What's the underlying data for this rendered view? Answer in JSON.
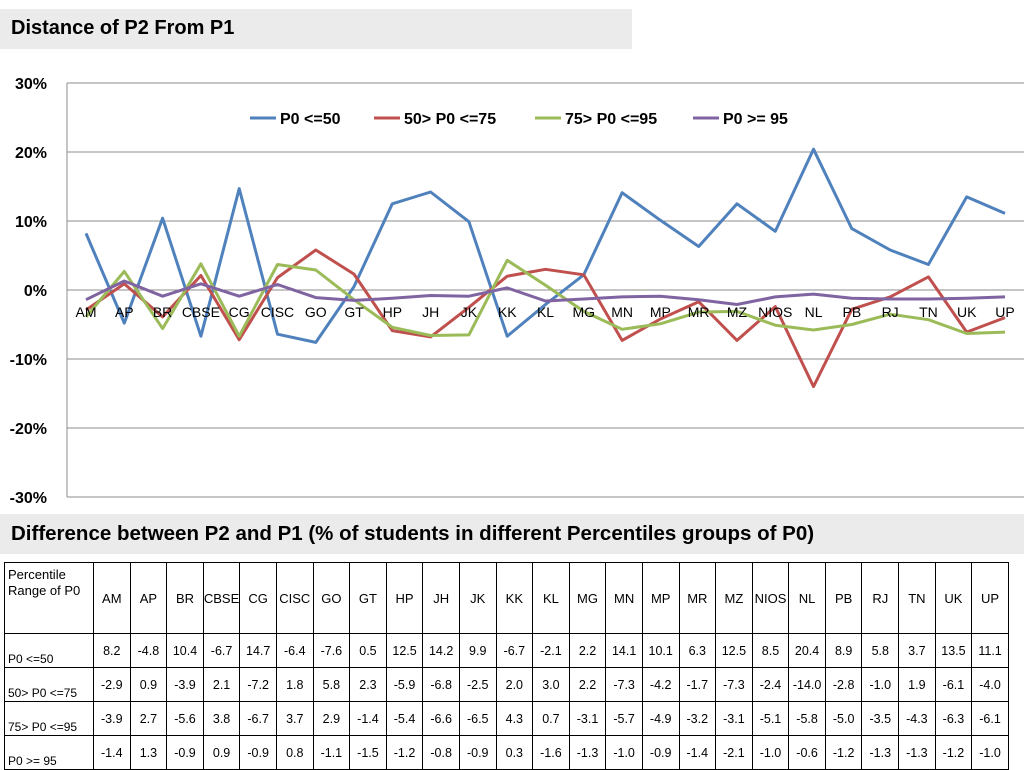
{
  "title": "Distance of P2 From P1",
  "subtitle": "Difference between P2 and P1 (% of students in different Percentiles groups of  P0)",
  "chart_data": {
    "type": "line",
    "categories": [
      "AM",
      "AP",
      "BR",
      "CBSE",
      "CG",
      "CISC",
      "GO",
      "GT",
      "HP",
      "JH",
      "JK",
      "KK",
      "KL",
      "MG",
      "MN",
      "MP",
      "MR",
      "MZ",
      "NIOS",
      "NL",
      "PB",
      "RJ",
      "TN",
      "UK",
      "UP"
    ],
    "ylim": [
      -30,
      30
    ],
    "yticks": [
      "-30%",
      "-20%",
      "-10%",
      "0%",
      "10%",
      "20%",
      "30%"
    ],
    "ytick_values": [
      -30,
      -20,
      -10,
      0,
      10,
      20,
      30
    ],
    "grid": true,
    "legend_position": "top",
    "series": [
      {
        "name": "P0 <=50",
        "color": "#4f81bd",
        "values": [
          8.2,
          -4.8,
          10.4,
          -6.7,
          14.7,
          -6.4,
          -7.6,
          0.5,
          12.5,
          14.2,
          9.9,
          -6.7,
          -2.1,
          2.2,
          14.1,
          10.1,
          6.3,
          12.5,
          8.5,
          20.4,
          8.9,
          5.8,
          3.7,
          13.5,
          11.1
        ]
      },
      {
        "name": "50> P0 <=75",
        "color": "#c0504d",
        "values": [
          -2.9,
          0.9,
          -3.9,
          2.1,
          -7.2,
          1.8,
          5.8,
          2.3,
          -5.9,
          -6.8,
          -2.5,
          2.0,
          3.0,
          2.2,
          -7.3,
          -4.2,
          -1.7,
          -7.3,
          -2.4,
          -14.0,
          -2.8,
          -1.0,
          1.9,
          -6.1,
          -4.0
        ]
      },
      {
        "name": "75> P0 <=95",
        "color": "#9bbb59",
        "values": [
          -3.9,
          2.7,
          -5.6,
          3.8,
          -6.7,
          3.7,
          2.9,
          -1.4,
          -5.4,
          -6.6,
          -6.5,
          4.3,
          0.7,
          -3.1,
          -5.7,
          -4.9,
          -3.2,
          -3.1,
          -5.1,
          -5.8,
          -5.0,
          -3.5,
          -4.3,
          -6.3,
          -6.1
        ]
      },
      {
        "name": "P0 >= 95",
        "color": "#8064a2",
        "values": [
          -1.4,
          1.3,
          -0.9,
          0.9,
          -0.9,
          0.8,
          -1.1,
          -1.5,
          -1.2,
          -0.8,
          -0.9,
          0.3,
          -1.6,
          -1.3,
          -1.0,
          -0.9,
          -1.4,
          -2.1,
          -1.0,
          -0.6,
          -1.2,
          -1.3,
          -1.3,
          -1.2,
          -1.0
        ]
      }
    ]
  },
  "table": {
    "header_label": "Percentile Range of P0",
    "rows": [
      {
        "label": "P0 <=50",
        "values": [
          "8.2",
          "-4.8",
          "10.4",
          "-6.7",
          "14.7",
          "-6.4",
          "-7.6",
          "0.5",
          "12.5",
          "14.2",
          "9.9",
          "-6.7",
          "-2.1",
          "2.2",
          "14.1",
          "10.1",
          "6.3",
          "12.5",
          "8.5",
          "20.4",
          "8.9",
          "5.8",
          "3.7",
          "13.5",
          "11.1"
        ]
      },
      {
        "label": "50> P0 <=75",
        "values": [
          "-2.9",
          "0.9",
          "-3.9",
          "2.1",
          "-7.2",
          "1.8",
          "5.8",
          "2.3",
          "-5.9",
          "-6.8",
          "-2.5",
          "2.0",
          "3.0",
          "2.2",
          "-7.3",
          "-4.2",
          "-1.7",
          "-7.3",
          "-2.4",
          "-14.0",
          "-2.8",
          "-1.0",
          "1.9",
          "-6.1",
          "-4.0"
        ]
      },
      {
        "label": "75> P0 <=95",
        "values": [
          "-3.9",
          "2.7",
          "-5.6",
          "3.8",
          "-6.7",
          "3.7",
          "2.9",
          "-1.4",
          "-5.4",
          "-6.6",
          "-6.5",
          "4.3",
          "0.7",
          "-3.1",
          "-5.7",
          "-4.9",
          "-3.2",
          "-3.1",
          "-5.1",
          "-5.8",
          "-5.0",
          "-3.5",
          "-4.3",
          "-6.3",
          "-6.1"
        ]
      },
      {
        "label": "P0 >= 95",
        "values": [
          "-1.4",
          "1.3",
          "-0.9",
          "0.9",
          "-0.9",
          "0.8",
          "-1.1",
          "-1.5",
          "-1.2",
          "-0.8",
          "-0.9",
          "0.3",
          "-1.6",
          "-1.3",
          "-1.0",
          "-0.9",
          "-1.4",
          "-2.1",
          "-1.0",
          "-0.6",
          "-1.2",
          "-1.3",
          "-1.3",
          "-1.2",
          "-1.0"
        ]
      }
    ]
  }
}
